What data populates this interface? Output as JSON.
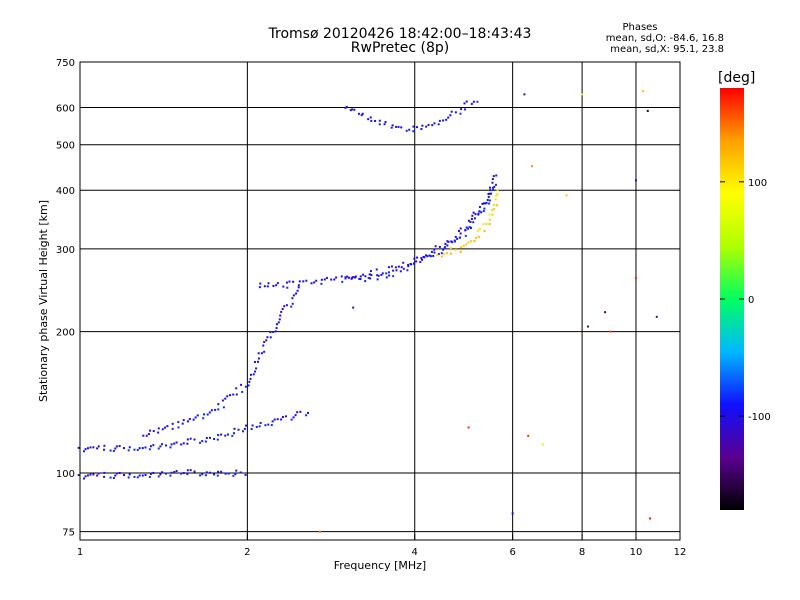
{
  "header": {
    "title_line1": "Tromsø 20120426 18:42:00–18:43:43",
    "title_line2": "RwPretec (8p)"
  },
  "stats": {
    "heading": "Phases",
    "line_o": "mean, sd,O: -84.6, 16.8",
    "line_x": "mean, sd,X: 95.1, 23.8"
  },
  "colorbar": {
    "unit": "[deg]",
    "range": [
      -180,
      180
    ],
    "ticks": [
      {
        "value": 100,
        "label": "100"
      },
      {
        "value": 0,
        "label": "0"
      },
      {
        "value": -100,
        "label": "-100"
      }
    ],
    "colors": [
      "#000000",
      "#5a0090",
      "#1010ff",
      "#00b8ff",
      "#00ff60",
      "#b0ff00",
      "#ffff00",
      "#ffa000",
      "#ff0000"
    ]
  },
  "chart_data": {
    "type": "scatter",
    "xlabel": "Frequency [MHz]",
    "ylabel": "Stationary phase Virtual Height [km]",
    "xscale": "log",
    "yscale": "log",
    "xlim": [
      1,
      12
    ],
    "ylim": [
      72,
      750
    ],
    "xticks": [
      1,
      2,
      4,
      6,
      8,
      10,
      12
    ],
    "yticks": [
      75,
      100,
      200,
      300,
      400,
      500,
      600,
      750
    ],
    "grid": true,
    "traces": [
      {
        "name": "",
        "color": "#1f50f0",
        "phase_deg": -95,
        "x": [
          1.0,
          1.2,
          1.5,
          1.8,
          2.0
        ],
        "y": [
          98,
          99,
          100,
          100,
          100
        ]
      },
      {
        "name": "",
        "color": "#1f50f0",
        "phase_deg": -95,
        "x": [
          1.0,
          1.2,
          1.5,
          1.8,
          2.0,
          2.3,
          2.6
        ],
        "y": [
          112,
          113,
          115,
          120,
          125,
          130,
          135
        ]
      },
      {
        "name": "",
        "color": "#1f50f0",
        "phase_deg": -95,
        "x": [
          1.3,
          1.6,
          1.8,
          2.0,
          2.1,
          2.2,
          2.3,
          2.5
        ],
        "y": [
          120,
          130,
          140,
          155,
          175,
          195,
          215,
          250
        ]
      },
      {
        "name": "",
        "color": "#1f50f0",
        "phase_deg": -95,
        "x": [
          2.1,
          2.2,
          2.4,
          2.6,
          2.8,
          3.2,
          3.8,
          4.4,
          5.0,
          5.4,
          5.6
        ],
        "y": [
          250,
          250,
          252,
          255,
          257,
          262,
          275,
          295,
          330,
          380,
          440
        ]
      },
      {
        "name": "",
        "color": "#ffd000",
        "phase_deg": 115,
        "x": [
          4.4,
          4.8,
          5.2,
          5.5,
          5.7
        ],
        "y": [
          290,
          300,
          320,
          350,
          400
        ]
      },
      {
        "name": "",
        "color": "#1f50f0",
        "phase_deg": -95,
        "x": [
          3.0,
          3.4,
          3.8,
          4.2,
          4.6,
          4.9,
          5.2
        ],
        "y": [
          600,
          560,
          540,
          545,
          570,
          600,
          630
        ]
      },
      {
        "name": "",
        "color": "#1f50f0",
        "phase_deg": -95,
        "x": [
          3.0,
          3.2,
          3.5,
          3.9,
          4.3,
          4.8,
          5.3,
          5.6
        ],
        "y": [
          260,
          258,
          262,
          275,
          295,
          320,
          370,
          420
        ]
      }
    ],
    "scattered_points_note": "",
    "sparse_points": [
      {
        "x": 6.3,
        "y": 640,
        "phase_deg": -120
      },
      {
        "x": 6.5,
        "y": 450,
        "phase_deg": 140
      },
      {
        "x": 7.5,
        "y": 390,
        "phase_deg": 120
      },
      {
        "x": 8.0,
        "y": 640,
        "phase_deg": 60
      },
      {
        "x": 8.2,
        "y": 205,
        "phase_deg": -130
      },
      {
        "x": 8.8,
        "y": 220,
        "phase_deg": -150
      },
      {
        "x": 9.0,
        "y": 200,
        "phase_deg": 160
      },
      {
        "x": 10.0,
        "y": 420,
        "phase_deg": -100
      },
      {
        "x": 10.0,
        "y": 260,
        "phase_deg": 170
      },
      {
        "x": 10.3,
        "y": 650,
        "phase_deg": 120
      },
      {
        "x": 10.5,
        "y": 590,
        "phase_deg": -160
      },
      {
        "x": 10.6,
        "y": 80,
        "phase_deg": 175
      },
      {
        "x": 10.9,
        "y": 215,
        "phase_deg": -120
      },
      {
        "x": 6.4,
        "y": 120,
        "phase_deg": 170
      },
      {
        "x": 6.8,
        "y": 115,
        "phase_deg": 60
      },
      {
        "x": 6.0,
        "y": 82,
        "phase_deg": -100
      },
      {
        "x": 5.0,
        "y": 125,
        "phase_deg": 170
      },
      {
        "x": 3.1,
        "y": 225,
        "phase_deg": -120
      },
      {
        "x": 2.7,
        "y": 75,
        "phase_deg": 150
      }
    ]
  }
}
